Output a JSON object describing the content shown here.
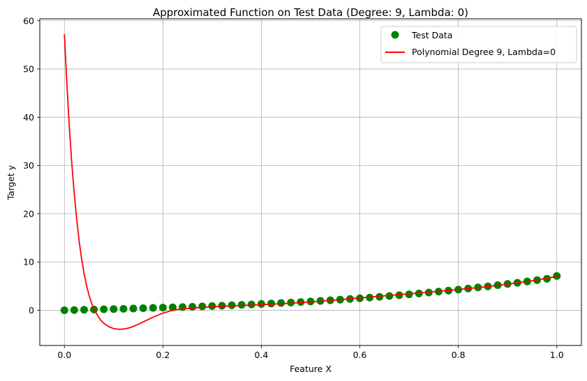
{
  "chart_data": {
    "type": "scatter",
    "title": "Approximated Function on Test Data (Degree: 9, Lambda: 0)",
    "xlabel": "Feature X",
    "ylabel": "Target y",
    "xlim": [
      -0.05,
      1.05
    ],
    "ylim": [
      -7.3,
      60.4
    ],
    "xticks": [
      0.0,
      0.2,
      0.4,
      0.6,
      0.8,
      1.0
    ],
    "xtick_labels": [
      "0.0",
      "0.2",
      "0.4",
      "0.6",
      "0.8",
      "1.0"
    ],
    "yticks": [
      0,
      10,
      20,
      30,
      40,
      50,
      60
    ],
    "ytick_labels": [
      "0",
      "10",
      "20",
      "30",
      "40",
      "50",
      "60"
    ],
    "grid": true,
    "legend_position": "top-right",
    "series": [
      {
        "name": "Test Data",
        "kind": "scatter",
        "color": "#008000",
        "x": [
          0.0,
          0.02,
          0.04,
          0.06,
          0.08,
          0.1,
          0.12,
          0.14,
          0.16,
          0.18,
          0.2,
          0.22,
          0.24,
          0.26,
          0.28,
          0.3,
          0.32,
          0.34,
          0.36,
          0.38,
          0.4,
          0.42,
          0.44,
          0.46,
          0.48,
          0.5,
          0.52,
          0.54,
          0.56,
          0.58,
          0.6,
          0.62,
          0.64,
          0.66,
          0.68,
          0.7,
          0.72,
          0.74,
          0.76,
          0.78,
          0.8,
          0.82,
          0.84,
          0.86,
          0.88,
          0.9,
          0.92,
          0.94,
          0.96,
          0.98,
          1.0
        ],
        "y": [
          0.0,
          0.05,
          0.1,
          0.15,
          0.2,
          0.25,
          0.3,
          0.36,
          0.42,
          0.5,
          0.55,
          0.6,
          0.66,
          0.72,
          0.8,
          0.87,
          0.95,
          1.03,
          1.12,
          1.2,
          1.3,
          1.4,
          1.5,
          1.6,
          1.71,
          1.82,
          1.94,
          2.07,
          2.2,
          2.34,
          2.48,
          2.63,
          2.79,
          2.95,
          3.12,
          3.3,
          3.48,
          3.67,
          3.87,
          4.07,
          4.28,
          4.5,
          4.73,
          4.96,
          5.2,
          5.45,
          5.7,
          5.97,
          6.24,
          6.52,
          7.1
        ]
      },
      {
        "name": "Polynomial Degree 9, Lambda=0",
        "kind": "line",
        "color": "#ff0000",
        "x": [
          0.0,
          0.005,
          0.01,
          0.015,
          0.02,
          0.025,
          0.03,
          0.035,
          0.04,
          0.045,
          0.05,
          0.055,
          0.06,
          0.065,
          0.07,
          0.075,
          0.08,
          0.09,
          0.1,
          0.11,
          0.12,
          0.13,
          0.14,
          0.15,
          0.16,
          0.18,
          0.2,
          0.22,
          0.24,
          0.26,
          0.3,
          0.35,
          0.4,
          0.45,
          0.5,
          0.55,
          0.6,
          0.65,
          0.7,
          0.75,
          0.8,
          0.85,
          0.9,
          0.95,
          1.0
        ],
        "y": [
          57.2,
          47.0,
          38.0,
          30.5,
          24.2,
          18.8,
          14.3,
          10.6,
          7.6,
          5.1,
          3.1,
          1.5,
          0.3,
          -0.7,
          -1.5,
          -2.2,
          -2.7,
          -3.4,
          -3.8,
          -3.95,
          -3.9,
          -3.7,
          -3.35,
          -2.9,
          -2.4,
          -1.45,
          -0.6,
          0.0,
          0.3,
          0.45,
          0.7,
          0.95,
          1.15,
          1.4,
          1.7,
          2.1,
          2.55,
          3.0,
          3.4,
          3.85,
          4.3,
          4.8,
          5.4,
          6.1,
          7.0
        ]
      }
    ]
  }
}
